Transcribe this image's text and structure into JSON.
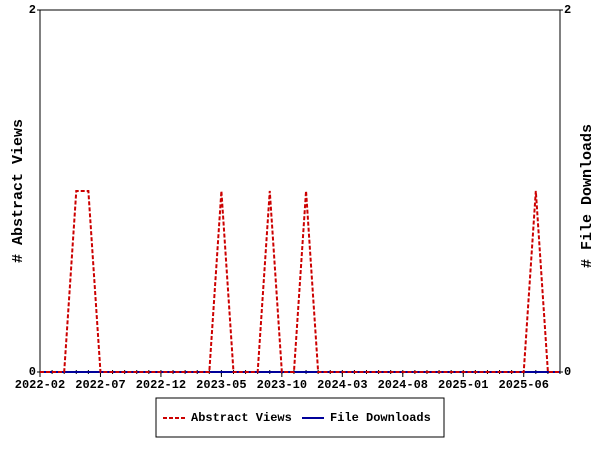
{
  "chart_data": {
    "type": "line",
    "x": [
      "2022-02",
      "2022-03",
      "2022-04",
      "2022-05",
      "2022-06",
      "2022-07",
      "2022-08",
      "2022-09",
      "2022-10",
      "2022-11",
      "2022-12",
      "2023-01",
      "2023-02",
      "2023-03",
      "2023-04",
      "2023-05",
      "2023-06",
      "2023-07",
      "2023-08",
      "2023-09",
      "2023-10",
      "2023-11",
      "2023-12",
      "2024-01",
      "2024-02",
      "2024-03",
      "2024-04",
      "2024-05",
      "2024-06",
      "2024-07",
      "2024-08",
      "2024-09",
      "2024-10",
      "2024-11",
      "2024-12",
      "2025-01",
      "2025-02",
      "2025-03",
      "2025-04",
      "2025-05",
      "2025-06",
      "2025-07",
      "2025-08",
      "2025-09"
    ],
    "xticks": [
      "2022-02",
      "2022-07",
      "2022-12",
      "2023-05",
      "2023-10",
      "2024-03",
      "2024-08",
      "2025-01",
      "2025-06"
    ],
    "ylabel": "# Abstract Views",
    "y2label": "# File Downloads",
    "ylim": [
      0,
      2
    ],
    "yticks": [
      0,
      2
    ],
    "y2lim": [
      0,
      2
    ],
    "y2ticks": [
      0,
      2
    ],
    "legend": "bottom",
    "series": [
      {
        "name": "Abstract Views",
        "color": "#cc0000",
        "dashed": true,
        "values": [
          0,
          0,
          0,
          1,
          1,
          0,
          0,
          0,
          0,
          0,
          0,
          0,
          0,
          0,
          0,
          1,
          0,
          0,
          0,
          1,
          0,
          0,
          1,
          0,
          0,
          0,
          0,
          0,
          0,
          0,
          0,
          0,
          0,
          0,
          0,
          0,
          0,
          0,
          0,
          0,
          0,
          1,
          0,
          0
        ]
      },
      {
        "name": "File Downloads",
        "color": "#000099",
        "axis": "y2",
        "values": [
          0,
          0,
          0,
          0,
          0,
          0,
          0,
          0,
          0,
          0,
          0,
          0,
          0,
          0,
          0,
          0,
          0,
          0,
          0,
          0,
          0,
          0,
          0,
          0,
          0,
          0,
          0,
          0,
          0,
          0,
          0,
          0,
          0,
          0,
          0,
          0,
          0,
          0,
          0,
          0,
          0,
          0,
          0,
          0
        ]
      }
    ]
  }
}
